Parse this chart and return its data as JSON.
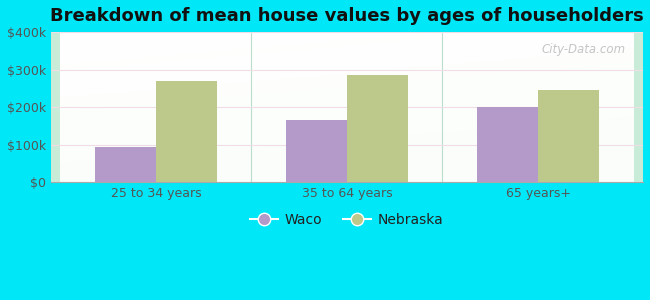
{
  "title": "Breakdown of mean house values by ages of householders",
  "categories": [
    "25 to 34 years",
    "35 to 64 years",
    "65 years+"
  ],
  "series": {
    "Waco": [
      95000,
      165000,
      200000
    ],
    "Nebraska": [
      270000,
      285000,
      245000
    ]
  },
  "waco_color": "#b39ac8",
  "nebraska_color": "#bdc98a",
  "background_outer": "#00e8f8",
  "ylim": [
    0,
    400000
  ],
  "yticks": [
    0,
    100000,
    200000,
    300000,
    400000
  ],
  "ytick_labels": [
    "$0",
    "$100k",
    "$200k",
    "$300k",
    "$400k"
  ],
  "bar_width": 0.32,
  "legend_labels": [
    "Waco",
    "Nebraska"
  ],
  "watermark": "City-Data.com",
  "grid_color": "#e0ece0",
  "title_fontsize": 13,
  "tick_fontsize": 9
}
